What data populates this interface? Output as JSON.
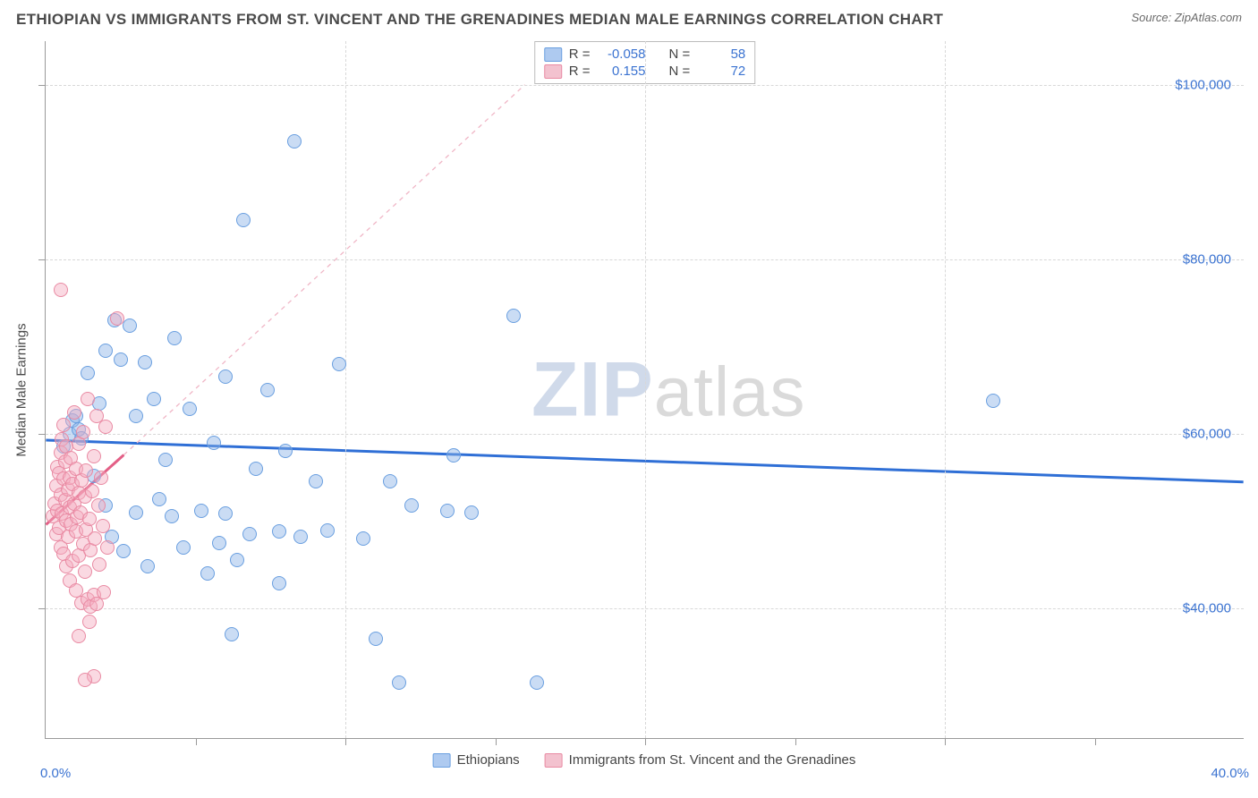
{
  "header": {
    "title": "ETHIOPIAN VS IMMIGRANTS FROM ST. VINCENT AND THE GRENADINES MEDIAN MALE EARNINGS CORRELATION CHART",
    "source": "Source: ZipAtlas.com"
  },
  "chart": {
    "type": "scatter",
    "y_axis_title": "Median Male Earnings",
    "xlim": [
      0,
      40
    ],
    "ylim": [
      25000,
      105000
    ],
    "x_tick_labels": {
      "min": "0.0%",
      "max": "40.0%"
    },
    "x_minor_ticks_pct": [
      5,
      10,
      15,
      20,
      25,
      30,
      35
    ],
    "y_ticks": [
      {
        "value": 40000,
        "label": "$40,000"
      },
      {
        "value": 60000,
        "label": "$60,000"
      },
      {
        "value": 80000,
        "label": "$80,000"
      },
      {
        "value": 100000,
        "label": "$100,000"
      }
    ],
    "background_color": "#ffffff",
    "grid_color": "#d8d8d8",
    "axis_color": "#9a9a9a",
    "marker_radius": 8,
    "marker_stroke_width": 1.4,
    "series": [
      {
        "id": "ethiopians",
        "label": "Ethiopians",
        "fill": "rgba(137,177,231,0.45)",
        "stroke": "#6a9fe0",
        "swatch_fill": "#aecaf0",
        "swatch_stroke": "#6a9fe0",
        "R": "-0.058",
        "N": "58",
        "points": [
          {
            "x": 0.6,
            "y": 58500
          },
          {
            "x": 0.8,
            "y": 60000
          },
          {
            "x": 0.9,
            "y": 61500
          },
          {
            "x": 1.0,
            "y": 62000
          },
          {
            "x": 1.1,
            "y": 60500
          },
          {
            "x": 1.2,
            "y": 59500
          },
          {
            "x": 1.4,
            "y": 67000
          },
          {
            "x": 1.6,
            "y": 55200
          },
          {
            "x": 1.8,
            "y": 63500
          },
          {
            "x": 2.0,
            "y": 51800
          },
          {
            "x": 2.0,
            "y": 69500
          },
          {
            "x": 2.2,
            "y": 48200
          },
          {
            "x": 2.3,
            "y": 73000
          },
          {
            "x": 2.5,
            "y": 68500
          },
          {
            "x": 2.6,
            "y": 46500
          },
          {
            "x": 2.8,
            "y": 72400
          },
          {
            "x": 3.0,
            "y": 62000
          },
          {
            "x": 3.0,
            "y": 51000
          },
          {
            "x": 3.3,
            "y": 68200
          },
          {
            "x": 3.4,
            "y": 44800
          },
          {
            "x": 3.6,
            "y": 64000
          },
          {
            "x": 3.8,
            "y": 52500
          },
          {
            "x": 4.0,
            "y": 57000
          },
          {
            "x": 4.2,
            "y": 50500
          },
          {
            "x": 4.3,
            "y": 71000
          },
          {
            "x": 4.6,
            "y": 46900
          },
          {
            "x": 4.8,
            "y": 62800
          },
          {
            "x": 5.2,
            "y": 51200
          },
          {
            "x": 5.4,
            "y": 44000
          },
          {
            "x": 5.6,
            "y": 59000
          },
          {
            "x": 5.8,
            "y": 47500
          },
          {
            "x": 6.0,
            "y": 66500
          },
          {
            "x": 6.0,
            "y": 50800
          },
          {
            "x": 6.4,
            "y": 45500
          },
          {
            "x": 6.6,
            "y": 84500
          },
          {
            "x": 6.8,
            "y": 48500
          },
          {
            "x": 7.0,
            "y": 56000
          },
          {
            "x": 7.4,
            "y": 65000
          },
          {
            "x": 7.8,
            "y": 48800
          },
          {
            "x": 7.8,
            "y": 42800
          },
          {
            "x": 8.0,
            "y": 58000
          },
          {
            "x": 8.3,
            "y": 93500
          },
          {
            "x": 8.5,
            "y": 48200
          },
          {
            "x": 9.0,
            "y": 54500
          },
          {
            "x": 9.4,
            "y": 48900
          },
          {
            "x": 9.8,
            "y": 68000
          },
          {
            "x": 10.6,
            "y": 48000
          },
          {
            "x": 11.0,
            "y": 36500
          },
          {
            "x": 11.5,
            "y": 54500
          },
          {
            "x": 11.8,
            "y": 31500
          },
          {
            "x": 12.2,
            "y": 51800
          },
          {
            "x": 13.4,
            "y": 51200
          },
          {
            "x": 13.6,
            "y": 57500
          },
          {
            "x": 14.2,
            "y": 51000
          },
          {
            "x": 15.6,
            "y": 73500
          },
          {
            "x": 16.4,
            "y": 31500
          },
          {
            "x": 31.6,
            "y": 63800
          },
          {
            "x": 6.2,
            "y": 37000
          }
        ],
        "trend": {
          "x1": 0,
          "y1": 59200,
          "x2": 40,
          "y2": 54400,
          "stroke": "#2f6fd6",
          "width": 3,
          "dash": "none"
        }
      },
      {
        "id": "stvincent",
        "label": "Immigrants from St. Vincent and the Grenadines",
        "fill": "rgba(245,170,190,0.45)",
        "stroke": "#e98aa3",
        "swatch_fill": "#f3c2cf",
        "swatch_stroke": "#e98aa3",
        "R": "0.155",
        "N": "72",
        "points": [
          {
            "x": 0.25,
            "y": 50500
          },
          {
            "x": 0.3,
            "y": 52000
          },
          {
            "x": 0.35,
            "y": 54000
          },
          {
            "x": 0.35,
            "y": 48500
          },
          {
            "x": 0.4,
            "y": 56200
          },
          {
            "x": 0.4,
            "y": 51200
          },
          {
            "x": 0.45,
            "y": 55500
          },
          {
            "x": 0.45,
            "y": 49200
          },
          {
            "x": 0.5,
            "y": 57800
          },
          {
            "x": 0.5,
            "y": 53000
          },
          {
            "x": 0.5,
            "y": 47000
          },
          {
            "x": 0.55,
            "y": 59400
          },
          {
            "x": 0.55,
            "y": 50800
          },
          {
            "x": 0.6,
            "y": 54800
          },
          {
            "x": 0.6,
            "y": 61000
          },
          {
            "x": 0.6,
            "y": 46200
          },
          {
            "x": 0.65,
            "y": 52400
          },
          {
            "x": 0.65,
            "y": 56800
          },
          {
            "x": 0.7,
            "y": 50000
          },
          {
            "x": 0.7,
            "y": 58500
          },
          {
            "x": 0.7,
            "y": 44800
          },
          {
            "x": 0.75,
            "y": 53600
          },
          {
            "x": 0.75,
            "y": 48200
          },
          {
            "x": 0.8,
            "y": 55000
          },
          {
            "x": 0.8,
            "y": 51600
          },
          {
            "x": 0.8,
            "y": 43200
          },
          {
            "x": 0.85,
            "y": 57200
          },
          {
            "x": 0.85,
            "y": 49600
          },
          {
            "x": 0.9,
            "y": 54200
          },
          {
            "x": 0.9,
            "y": 45400
          },
          {
            "x": 0.95,
            "y": 52000
          },
          {
            "x": 0.95,
            "y": 62400
          },
          {
            "x": 1.0,
            "y": 48800
          },
          {
            "x": 1.0,
            "y": 56000
          },
          {
            "x": 1.0,
            "y": 42000
          },
          {
            "x": 1.05,
            "y": 50400
          },
          {
            "x": 1.1,
            "y": 53200
          },
          {
            "x": 1.1,
            "y": 58800
          },
          {
            "x": 1.1,
            "y": 46000
          },
          {
            "x": 1.15,
            "y": 51000
          },
          {
            "x": 1.2,
            "y": 54600
          },
          {
            "x": 1.2,
            "y": 40600
          },
          {
            "x": 1.25,
            "y": 60200
          },
          {
            "x": 1.25,
            "y": 47400
          },
          {
            "x": 1.3,
            "y": 52800
          },
          {
            "x": 1.3,
            "y": 44200
          },
          {
            "x": 1.35,
            "y": 55800
          },
          {
            "x": 1.35,
            "y": 49000
          },
          {
            "x": 1.4,
            "y": 41000
          },
          {
            "x": 1.4,
            "y": 64000
          },
          {
            "x": 1.45,
            "y": 50200
          },
          {
            "x": 1.5,
            "y": 46600
          },
          {
            "x": 1.5,
            "y": 40200
          },
          {
            "x": 1.55,
            "y": 53400
          },
          {
            "x": 1.6,
            "y": 41500
          },
          {
            "x": 1.6,
            "y": 57400
          },
          {
            "x": 1.65,
            "y": 48000
          },
          {
            "x": 1.7,
            "y": 40500
          },
          {
            "x": 1.7,
            "y": 62000
          },
          {
            "x": 1.75,
            "y": 51800
          },
          {
            "x": 1.8,
            "y": 45000
          },
          {
            "x": 1.85,
            "y": 55000
          },
          {
            "x": 1.9,
            "y": 49400
          },
          {
            "x": 1.95,
            "y": 41800
          },
          {
            "x": 2.0,
            "y": 60800
          },
          {
            "x": 2.05,
            "y": 47000
          },
          {
            "x": 0.5,
            "y": 76500
          },
          {
            "x": 1.1,
            "y": 36800
          },
          {
            "x": 1.45,
            "y": 38400
          },
          {
            "x": 1.6,
            "y": 32200
          },
          {
            "x": 1.3,
            "y": 31800
          },
          {
            "x": 2.4,
            "y": 73200
          }
        ],
        "trend": {
          "x1": 0,
          "y1": 49500,
          "x2": 2.6,
          "y2": 57500,
          "stroke": "#e35f86",
          "width": 3,
          "dash": "none"
        },
        "trend_ext": {
          "x1": 2.6,
          "y1": 57500,
          "x2": 16,
          "y2": 100000,
          "stroke": "#f0b6c6",
          "width": 1.3,
          "dash": "5,5"
        }
      }
    ],
    "legend_box": {
      "rows": [
        {
          "series": 0,
          "r_label": "R =",
          "n_label": "N ="
        },
        {
          "series": 1,
          "r_label": "R =",
          "n_label": "N ="
        }
      ]
    },
    "watermark": {
      "bold": "ZIP",
      "rest": "atlas"
    }
  }
}
